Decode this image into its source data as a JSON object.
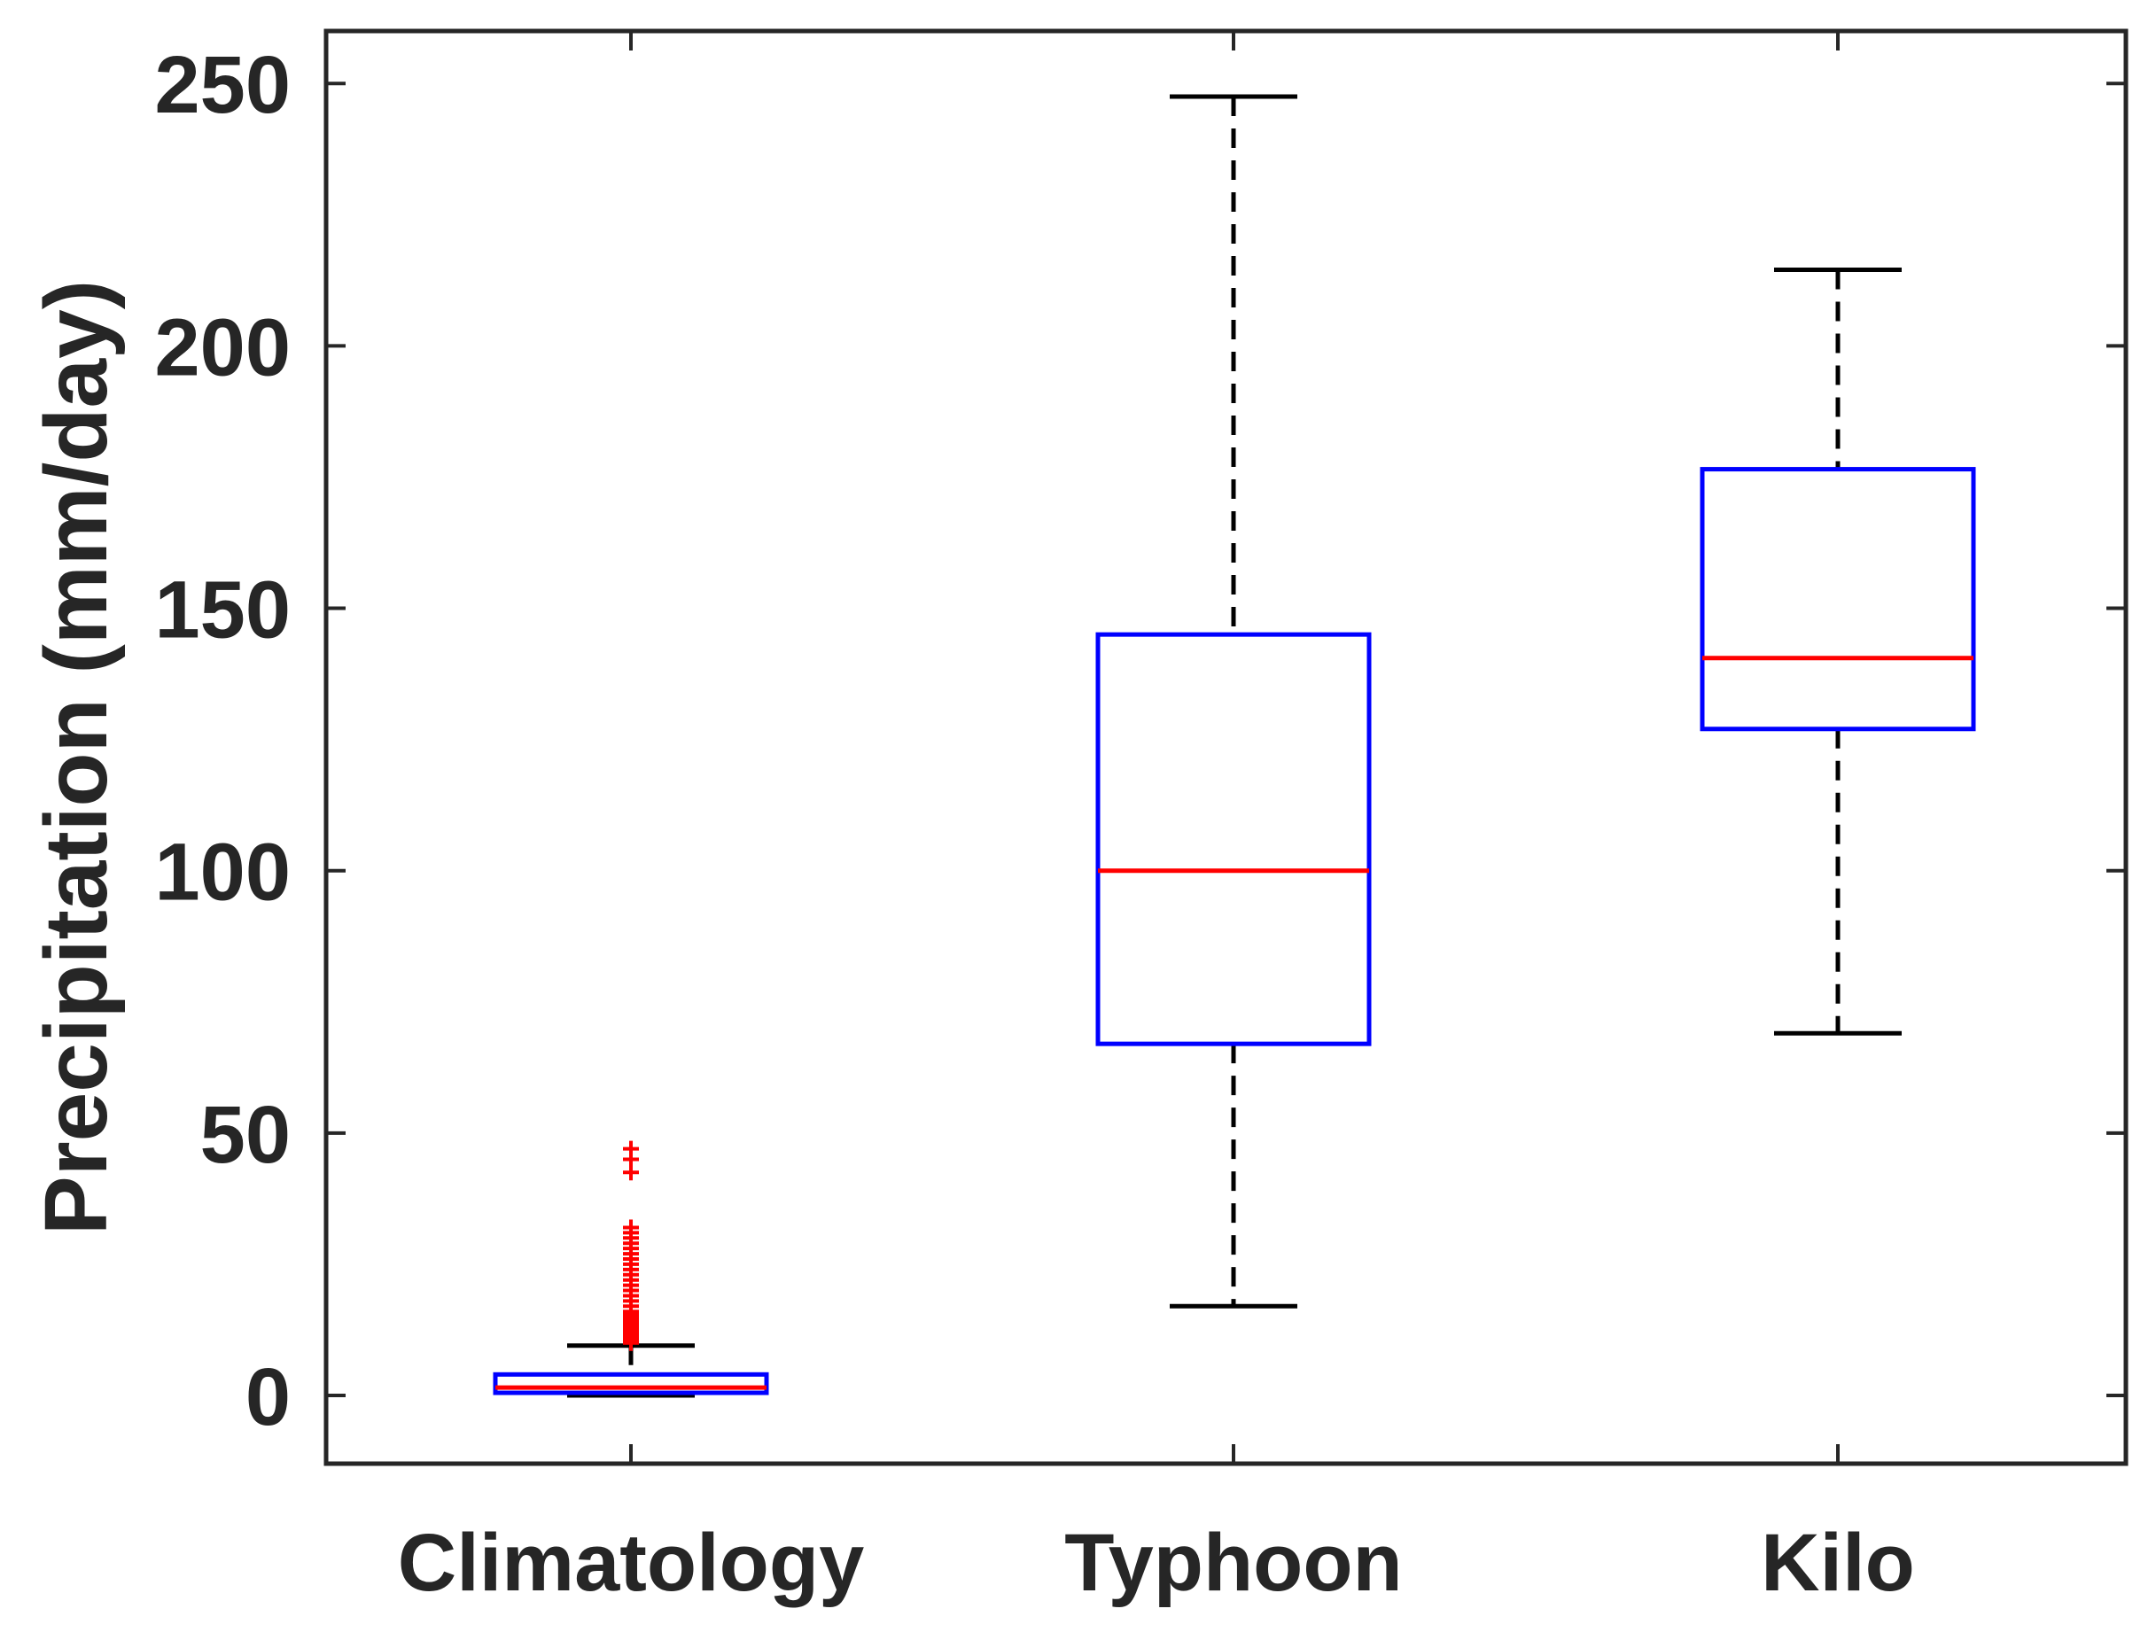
{
  "chart_data": {
    "type": "boxplot",
    "title": "",
    "xlabel": "",
    "ylabel": "Precipitation (mm/day)",
    "ylim": [
      -13,
      260
    ],
    "yticks": [
      0,
      50,
      100,
      150,
      200,
      250
    ],
    "grid": false,
    "categories": [
      "Climatology",
      "Typhoon",
      "Kilo"
    ],
    "boxes": [
      {
        "category": "Climatology",
        "whisker_low": 0,
        "q1": 0.5,
        "median": 1.5,
        "q3": 4,
        "whisker_high": 9.5,
        "outliers": [
          10,
          10.5,
          11,
          11.5,
          12,
          12.5,
          13,
          13.5,
          14,
          14.5,
          15,
          15.5,
          16,
          17,
          18,
          19,
          20,
          21,
          22,
          23,
          24,
          25,
          26,
          27,
          28,
          29,
          30,
          31,
          32,
          42.5,
          45,
          47
        ]
      },
      {
        "category": "Typhoon",
        "whisker_low": 17,
        "q1": 67,
        "median": 100,
        "q3": 145,
        "whisker_high": 247.5
      },
      {
        "category": "Kilo",
        "whisker_low": 69,
        "q1": 127,
        "median": 140.5,
        "q3": 176.5,
        "whisker_high": 214.5
      }
    ],
    "colors": {
      "box": "#0000ff",
      "median": "#ff0000",
      "whisker": "#000000",
      "outlier": "#ff0000",
      "axis": "#262626"
    }
  }
}
